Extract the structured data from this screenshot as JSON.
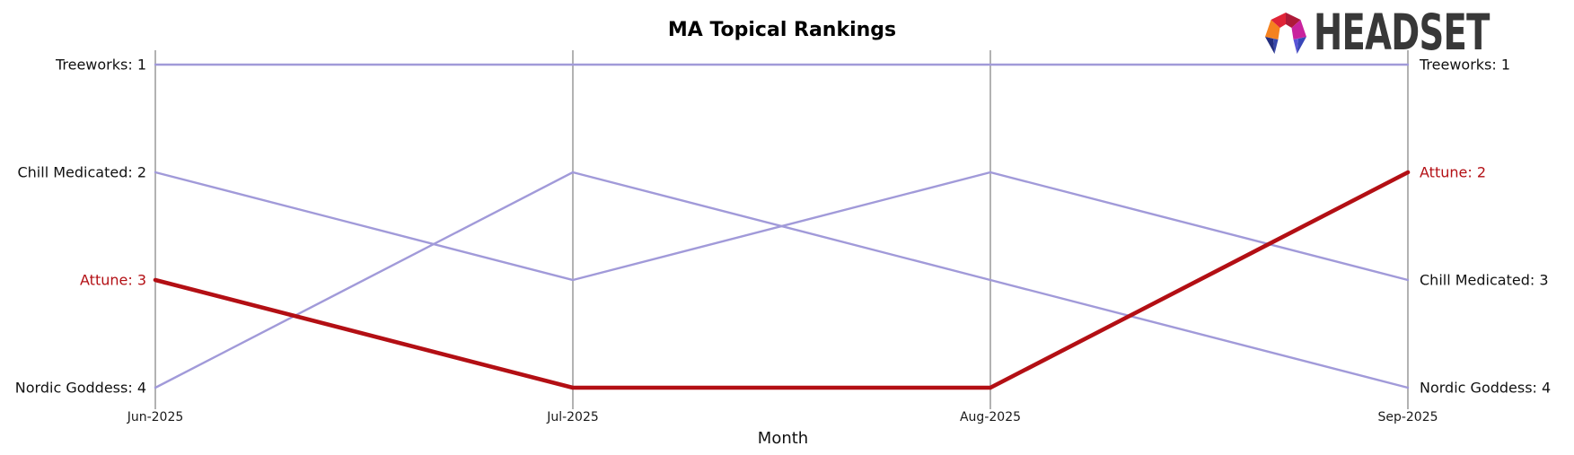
{
  "logo": {
    "text": "HEADSET",
    "icon": "headset-logo-mark",
    "facet_colors": [
      "#F5821F",
      "#E02437",
      "#AE1A38",
      "#C9239D",
      "#232D7D",
      "#3747AB",
      "#5A54D6",
      "#3846B8"
    ],
    "text_color": "#383838"
  },
  "chart_data": {
    "type": "line",
    "variant": "bump-rank",
    "title": "MA Topical Rankings",
    "xlabel": "Month",
    "x": [
      "Jun-2025",
      "Jul-2025",
      "Aug-2025",
      "Sep-2025"
    ],
    "rank_range": [
      1,
      4
    ],
    "y_axis": "rank (1 at top, inverted)",
    "grid": "vertical line per month",
    "legend": "none (direct labels at line start/end)",
    "axis_color": "#b2b2b2",
    "series": [
      {
        "name": "Treeworks",
        "values": [
          1,
          1,
          1,
          1
        ],
        "color": "#a19ad9",
        "width": 2.4,
        "highlight": false,
        "left_label": "Treeworks: 1",
        "right_label": "Treeworks: 1",
        "label_color": "#111111"
      },
      {
        "name": "Chill Medicated",
        "values": [
          2,
          3,
          2,
          3
        ],
        "color": "#a19ad9",
        "width": 2.4,
        "highlight": false,
        "left_label": "Chill Medicated: 2",
        "right_label": "Chill Medicated: 3",
        "label_color": "#111111"
      },
      {
        "name": "Attune",
        "values": [
          3,
          4,
          4,
          2
        ],
        "color": "#b30f14",
        "width": 4.6,
        "highlight": true,
        "left_label": "Attune: 3",
        "right_label": "Attune: 2",
        "label_color": "#b30f14"
      },
      {
        "name": "Nordic Goddess",
        "values": [
          4,
          2,
          3,
          4
        ],
        "color": "#a19ad9",
        "width": 2.4,
        "highlight": false,
        "left_label": "Nordic Goddess: 4",
        "right_label": "Nordic Goddess: 4",
        "label_color": "#111111"
      }
    ]
  }
}
